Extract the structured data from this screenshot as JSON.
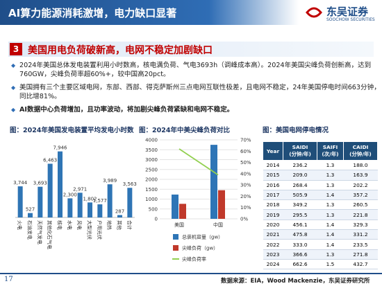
{
  "header": {
    "title": "AI算力能源消耗激增，电力缺口显著",
    "logo": "东吴证券",
    "logo_en": "SOOCHOW SECURITIES"
  },
  "section": {
    "number": "3",
    "title": "美国用电负荷破新高，电网不稳定加剧缺口"
  },
  "bullets": [
    "2024年美国总体发电装置利用小时数高，核电满负荷、气电3693h（调峰成本高）。2024年美国尖峰负荷创新高，达到760GW，尖峰负荷率超60%+，较中国高20pct。",
    "美国拥有三个主要区域电网，东部、西部、得克萨斯州三点电网互联性极差，且电网不稳定，24年美国停电时间663分钟，同比增81%。",
    "AI数据中心负荷增加，且功率波动，将加剧尖峰负荷紧缺和电网不稳定。"
  ],
  "chart_data": [
    {
      "type": "bar",
      "title": "图：2024年美国发电装置平均发电小时数",
      "categories": [
        "火电",
        "石油发电",
        "天然气发电",
        "其他化石气电",
        "核电",
        "水电",
        "风电",
        "大型光伏",
        "户用光伏",
        "地热",
        "其他",
        "合计"
      ],
      "values": [
        3744,
        527,
        3693,
        6463,
        7946,
        2300,
        2971,
        1802,
        1577,
        3989,
        287,
        3563
      ],
      "value_labels": [
        "3,744",
        "527",
        "3,693",
        "6,463",
        "7,946",
        "2,300",
        "2,971",
        "1,802",
        "1,577",
        "3,989",
        "287",
        "3,563"
      ],
      "color": "#2f75b5",
      "ylim": [
        0,
        9000
      ]
    },
    {
      "type": "bar",
      "title": "图：2024年中美尖峰负荷对比",
      "categories": [
        "美国",
        "中国"
      ],
      "series": [
        {
          "name": "总装机容量（gw）",
          "color": "#2e75b6",
          "values": [
            1230,
            3750
          ]
        },
        {
          "name": "尖峰负荷（gw）",
          "color": "#c0392b",
          "values": [
            760,
            1450
          ]
        },
        {
          "name": "尖峰负荷率",
          "color": "#92d050",
          "values": [
            62,
            39
          ],
          "axis": "y2",
          "type": "line"
        }
      ],
      "ylim": [
        0,
        4000
      ],
      "yticks": [
        0,
        500,
        1000,
        1500,
        2000,
        2500,
        3000,
        3500,
        4000
      ],
      "y2lim": [
        0,
        70
      ],
      "y2ticks": [
        {
          "value": 0,
          "label": "0%"
        },
        {
          "value": 10,
          "label": "10%"
        },
        {
          "value": 20,
          "label": "20%"
        },
        {
          "value": 30,
          "label": "30%"
        },
        {
          "value": 40,
          "label": "40%"
        },
        {
          "value": 50,
          "label": "50%"
        },
        {
          "value": 60,
          "label": "60%"
        },
        {
          "value": 70,
          "label": "70%"
        }
      ],
      "grid": true
    }
  ],
  "table": {
    "title": "图：美国电网停电情况",
    "columns": [
      "Year",
      "SAIDI\n(分钟/年)",
      "SAIFI\n(次/年)",
      "CAIDI\n(分钟/年)"
    ],
    "rows": [
      [
        "2014",
        "236.2",
        "1.3",
        "188.0"
      ],
      [
        "2015",
        "209.0",
        "1.3",
        "163.9"
      ],
      [
        "2016",
        "268.4",
        "1.3",
        "202.2"
      ],
      [
        "2017",
        "505.9",
        "1.4",
        "357.2"
      ],
      [
        "2018",
        "349.2",
        "1.3",
        "260.5"
      ],
      [
        "2019",
        "295.5",
        "1.3",
        "221.8"
      ],
      [
        "2020",
        "456.1",
        "1.4",
        "329.3"
      ],
      [
        "2021",
        "475.8",
        "1.4",
        "331.2"
      ],
      [
        "2022",
        "333.0",
        "1.4",
        "233.5"
      ],
      [
        "2023",
        "366.6",
        "1.3",
        "271.8"
      ],
      [
        "2024",
        "662.6",
        "1.5",
        "432.7"
      ]
    ]
  },
  "footer": {
    "page": "17",
    "source": "数据来源：EIA，Wood Mackenzie，东吴证券研究所"
  }
}
